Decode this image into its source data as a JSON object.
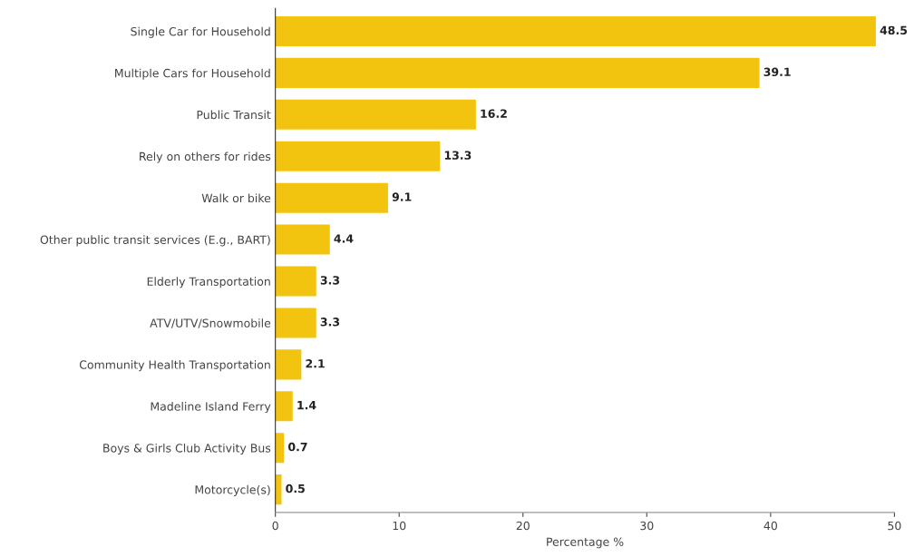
{
  "chart_data": {
    "type": "bar",
    "orientation": "horizontal",
    "xlabel": "Percentage %",
    "categories": [
      "Single Car for Household",
      "Multiple Cars for Household",
      "Public Transit",
      "Rely on others for rides",
      "Walk or bike",
      "Other public transit services (E.g., BART)",
      "Elderly Transportation",
      "ATV/UTV/Snowmobile",
      "Community Health Transportation",
      "Madeline Island Ferry",
      "Boys & Girls Club Activity Bus",
      "Motorcycle(s)"
    ],
    "values": [
      48.5,
      39.1,
      16.2,
      13.3,
      9.1,
      4.4,
      3.3,
      3.3,
      2.1,
      1.4,
      0.7,
      0.5
    ],
    "color": "#f2c40f",
    "xlim": [
      0,
      50
    ],
    "xticks": [
      0,
      10,
      20,
      30,
      40,
      50
    ],
    "data_labels": true,
    "grid": false,
    "legend": false
  }
}
